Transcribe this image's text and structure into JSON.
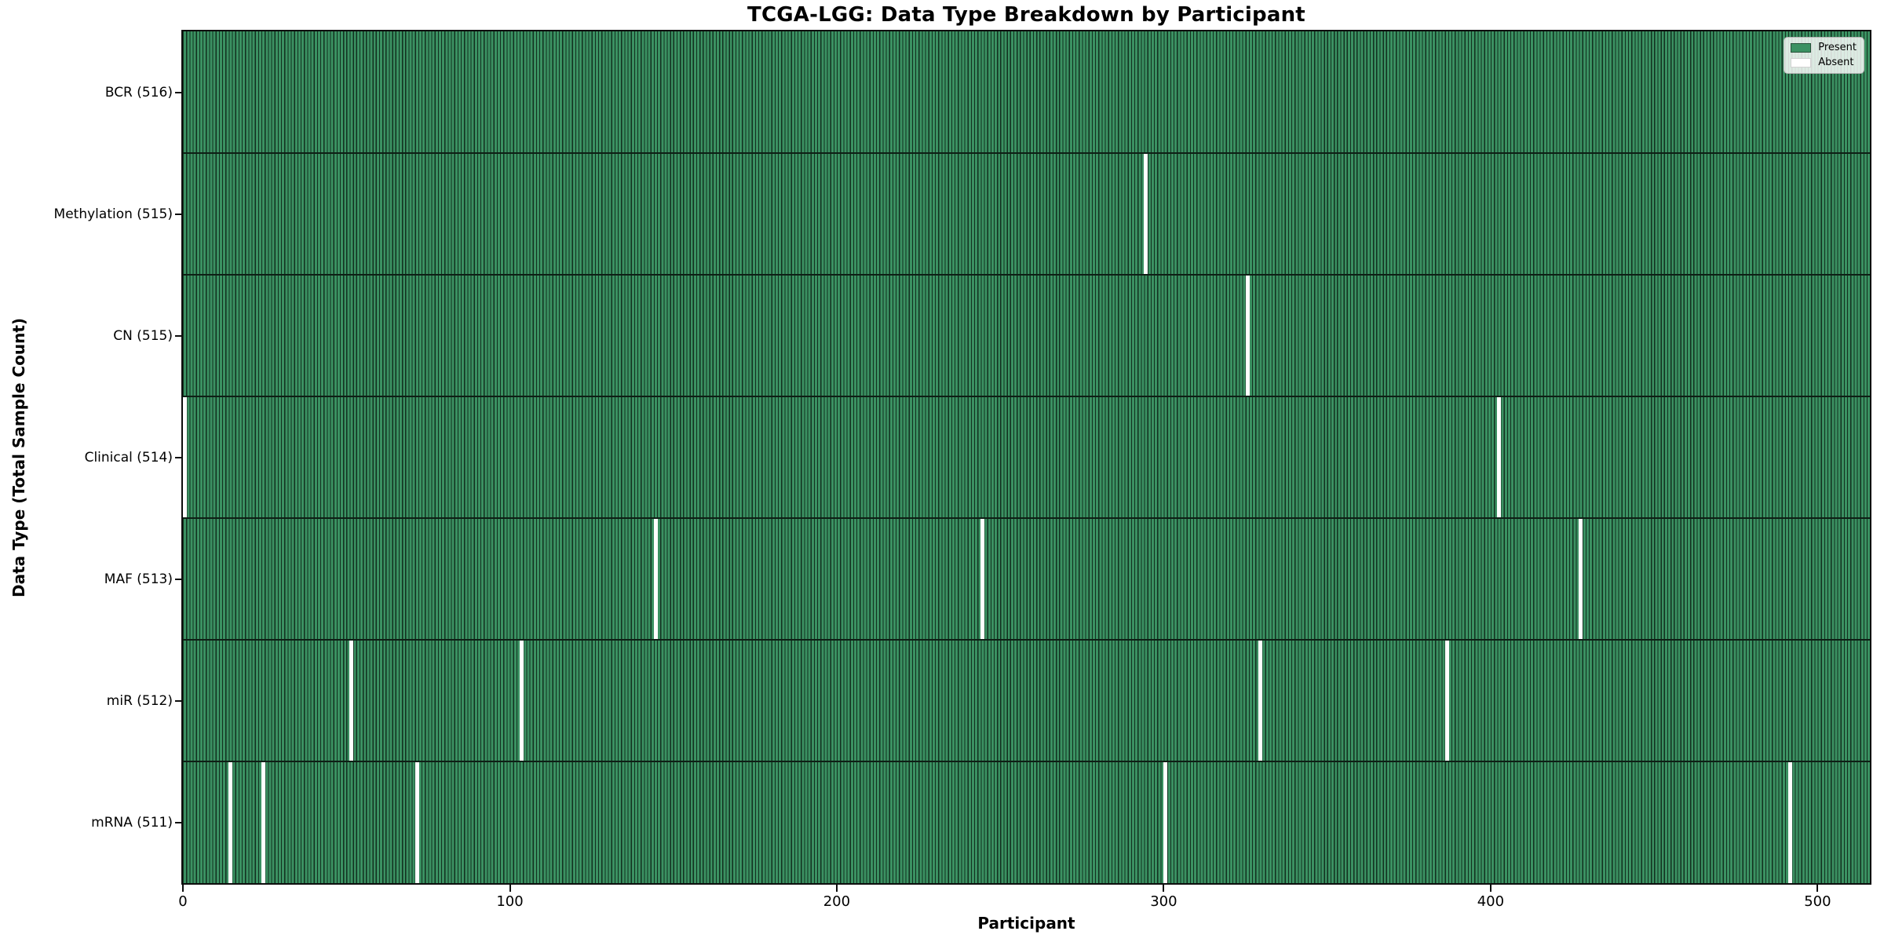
{
  "title": "TCGA-LGG: Data Type Breakdown by Participant",
  "axes": {
    "xlabel": "Participant",
    "ylabel": "Data Type (Total Sample Count)"
  },
  "legend": {
    "entries": [
      {
        "label": "Present",
        "color": "#3b9162"
      },
      {
        "label": "Absent",
        "color": "#ffffff"
      }
    ]
  },
  "chart_data": {
    "type": "heatmap",
    "title": "TCGA-LGG: Data Type Breakdown by Participant",
    "xlabel": "Participant",
    "ylabel": "Data Type (Total Sample Count)",
    "legend": [
      "Present",
      "Absent"
    ],
    "legend_position": "upper right",
    "grid": false,
    "total_participants": 516,
    "x_ticks": [
      0,
      100,
      200,
      300,
      400,
      500
    ],
    "xlim": [
      0,
      516
    ],
    "colors": {
      "present": "#3b9162",
      "absent": "#ffffff",
      "bar_edge": "#12301f",
      "row_separator": "#0e1f15",
      "axis": "#0e0e0e"
    },
    "rows": [
      {
        "label": "BCR (516)",
        "data_type": "BCR",
        "present_count": 516,
        "absent_participants": []
      },
      {
        "label": "Methylation (515)",
        "data_type": "Methylation",
        "present_count": 515,
        "absent_participants": [
          294
        ]
      },
      {
        "label": "CN (515)",
        "data_type": "CN",
        "present_count": 515,
        "absent_participants": [
          325
        ]
      },
      {
        "label": "Clinical (514)",
        "data_type": "Clinical",
        "present_count": 514,
        "absent_participants": [
          0,
          402
        ]
      },
      {
        "label": "MAF (513)",
        "data_type": "MAF",
        "present_count": 513,
        "absent_participants": [
          144,
          244,
          427
        ]
      },
      {
        "label": "miR (512)",
        "data_type": "miR",
        "present_count": 512,
        "absent_participants": [
          51,
          103,
          329,
          386
        ]
      },
      {
        "label": "mRNA (511)",
        "data_type": "mRNA",
        "present_count": 511,
        "absent_participants": [
          14,
          24,
          71,
          300,
          491
        ]
      }
    ]
  }
}
